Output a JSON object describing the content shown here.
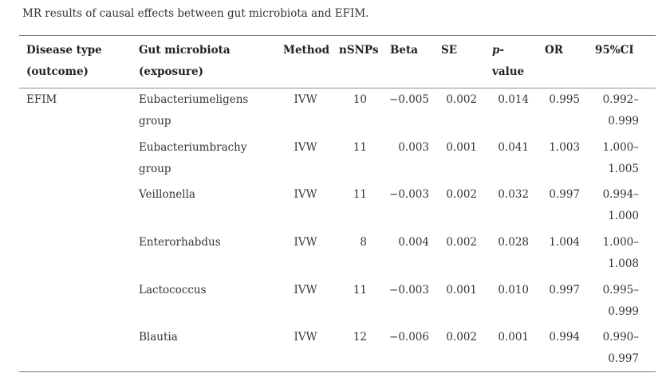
{
  "caption": "MR results of causal effects between gut microbiota and EFIM.",
  "columns": {
    "disease": [
      "Disease type",
      "(outcome)"
    ],
    "microbiota": [
      "Gut microbiota",
      "(exposure)"
    ],
    "method": "Method",
    "nsnps": "nSNPs",
    "beta": "Beta",
    "se": "SE",
    "pvalue": [
      "p-",
      "value"
    ],
    "or": "OR",
    "ci": "95%CI"
  },
  "rows": [
    {
      "disease": "EFIM",
      "microbiota": [
        "Eubacteriumeligens",
        "group"
      ],
      "method": "IVW",
      "nsnps": "10",
      "beta": "−0.005",
      "se": "0.002",
      "p": "0.014",
      "or": "0.995",
      "ci": [
        "0.992–",
        "0.999"
      ]
    },
    {
      "disease": "",
      "microbiota": [
        "Eubacteriumbrachy",
        "group"
      ],
      "method": "IVW",
      "nsnps": "11",
      "beta": "0.003",
      "se": "0.001",
      "p": "0.041",
      "or": "1.003",
      "ci": [
        "1.000–",
        "1.005"
      ]
    },
    {
      "disease": "",
      "microbiota": [
        "Veillonella",
        ""
      ],
      "method": "IVW",
      "nsnps": "11",
      "beta": "−0.003",
      "se": "0.002",
      "p": "0.032",
      "or": "0.997",
      "ci": [
        "0.994–",
        "1.000"
      ]
    },
    {
      "disease": "",
      "microbiota": [
        "Enterorhabdus",
        ""
      ],
      "method": "IVW",
      "nsnps": "8",
      "beta": "0.004",
      "se": "0.002",
      "p": "0.028",
      "or": "1.004",
      "ci": [
        "1.000–",
        "1.008"
      ]
    },
    {
      "disease": "",
      "microbiota": [
        "Lactococcus",
        ""
      ],
      "method": "IVW",
      "nsnps": "11",
      "beta": "−0.003",
      "se": "0.001",
      "p": "0.010",
      "or": "0.997",
      "ci": [
        "0.995–",
        "0.999"
      ]
    },
    {
      "disease": "",
      "microbiota": [
        "Blautia",
        ""
      ],
      "method": "IVW",
      "nsnps": "12",
      "beta": "−0.006",
      "se": "0.002",
      "p": "0.001",
      "or": "0.994",
      "ci": [
        "0.990–",
        "0.997"
      ]
    }
  ]
}
